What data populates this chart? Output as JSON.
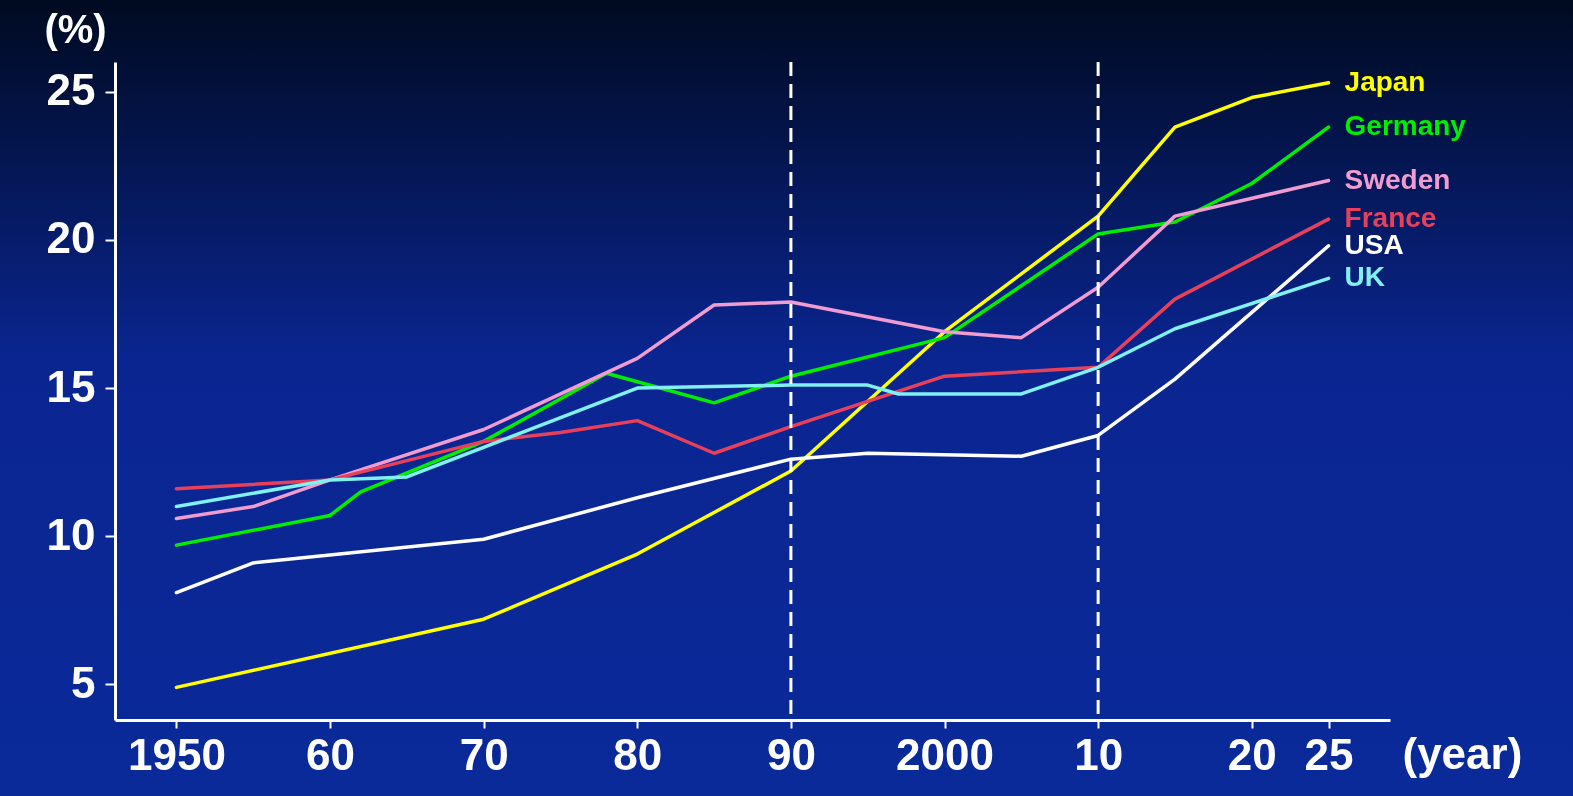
{
  "chart_data": {
    "type": "line",
    "xlabel": "(year)",
    "ylabel": "(%)",
    "xlim": [
      1946,
      2029
    ],
    "ylim": [
      3.8,
      26
    ],
    "xticks": [
      1950,
      {
        "value": 1960,
        "label": "60"
      },
      {
        "value": 1970,
        "label": "70"
      },
      {
        "value": 1980,
        "label": "80"
      },
      {
        "value": 1990,
        "label": "90"
      },
      2000,
      {
        "value": 2010,
        "label": "10"
      },
      {
        "value": 2020,
        "label": "20"
      },
      {
        "value": 2025,
        "label": "25"
      }
    ],
    "yticks": [
      5,
      10,
      15,
      20,
      25
    ],
    "grid": false,
    "marker": "none",
    "line_style": "solid",
    "ref_lines": [
      {
        "axis": "x",
        "value": 1990,
        "color": "#ffffff",
        "line_style": "dashed"
      },
      {
        "axis": "x",
        "value": 2010,
        "color": "#ffffff",
        "line_style": "dashed"
      }
    ],
    "series": [
      {
        "name": "Japan",
        "color": "#ffff00",
        "x": [
          1950,
          1970,
          1980,
          1985,
          1990,
          2000,
          2010,
          2015,
          2020,
          2025
        ],
        "values": [
          4.9,
          7.2,
          9.4,
          10.8,
          12.2,
          16.9,
          20.8,
          23.8,
          24.8,
          25.3
        ]
      },
      {
        "name": "Germany",
        "color": "#00ee00",
        "x": [
          1950,
          1960,
          1962,
          1970,
          1978,
          1985,
          1990,
          2000,
          2010,
          2015,
          2020,
          2025
        ],
        "values": [
          9.7,
          10.7,
          11.5,
          13.2,
          15.5,
          14.5,
          15.4,
          16.7,
          20.2,
          20.6,
          21.9,
          23.8
        ]
      },
      {
        "name": "Sweden",
        "color": "#f09cd0",
        "x": [
          1950,
          1955,
          1960,
          1970,
          1980,
          1985,
          1990,
          2000,
          2005,
          2010,
          2015,
          2025
        ],
        "values": [
          10.6,
          11.0,
          11.9,
          13.6,
          16.0,
          17.8,
          17.9,
          16.9,
          16.7,
          18.4,
          20.8,
          22.0
        ]
      },
      {
        "name": "France",
        "color": "#e8405a",
        "x": [
          1950,
          1960,
          1970,
          1975,
          1980,
          1985,
          1990,
          2000,
          2010,
          2015,
          2025
        ],
        "values": [
          11.6,
          11.9,
          13.2,
          13.5,
          13.9,
          12.8,
          13.7,
          15.4,
          15.7,
          18.0,
          20.7
        ]
      },
      {
        "name": "USA",
        "color": "#ffffff",
        "x": [
          1950,
          1955,
          1970,
          1980,
          1990,
          1995,
          2005,
          2010,
          2015,
          2025
        ],
        "values": [
          8.1,
          9.1,
          9.9,
          11.3,
          12.6,
          12.8,
          12.7,
          13.4,
          15.3,
          19.8
        ]
      },
      {
        "name": "UK",
        "color": "#80f0f0",
        "x": [
          1950,
          1960,
          1965,
          1970,
          1980,
          1990,
          1995,
          1997,
          2005,
          2010,
          2015,
          2025
        ],
        "values": [
          11.0,
          11.9,
          12.0,
          13.0,
          15.0,
          15.1,
          15.1,
          14.8,
          14.8,
          15.7,
          17.0,
          18.7
        ]
      }
    ]
  }
}
